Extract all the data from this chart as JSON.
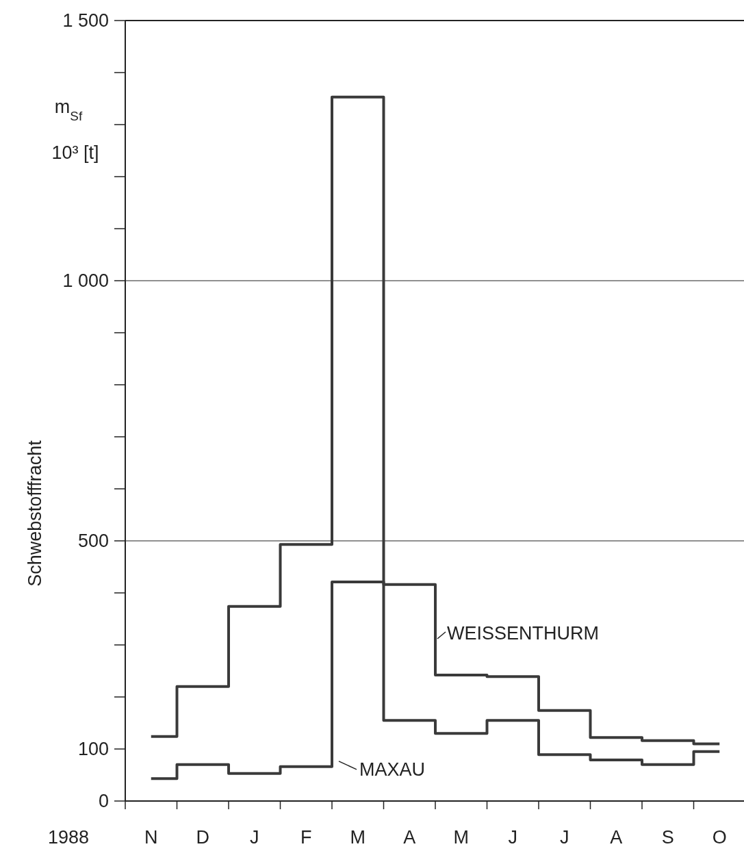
{
  "chart_data": {
    "type": "step",
    "ylabel": "Schwebstofffracht",
    "categories": [
      "N",
      "D",
      "J",
      "F",
      "M",
      "A",
      "M",
      "J",
      "J",
      "A",
      "S",
      "O"
    ],
    "series": [
      {
        "name": "WEISSENTHURM",
        "color": "#3a3a3a",
        "values": [
          124,
          220,
          374,
          493,
          1353,
          416,
          242,
          239,
          174,
          122,
          116,
          110
        ]
      },
      {
        "name": "MAXAU",
        "color": "#3a3a3a",
        "values": [
          43,
          70,
          53,
          66,
          421,
          155,
          130,
          155,
          89,
          79,
          70,
          95
        ]
      }
    ],
    "ylim": [
      0,
      1500
    ],
    "yticks": [
      0,
      100,
      {
        "value": 200,
        "label": null
      },
      {
        "value": 300,
        "label": null
      },
      {
        "value": 400,
        "label": null
      },
      500,
      {
        "value": 600,
        "label": null
      },
      {
        "value": 700,
        "label": null
      },
      {
        "value": 800,
        "label": null
      },
      {
        "value": 900,
        "label": null
      },
      {
        "value": 1000,
        "label": "1 000"
      },
      {
        "value": 1100,
        "label": null
      },
      {
        "value": 1200,
        "label": null
      },
      {
        "value": 1300,
        "label": null
      },
      {
        "value": 1400,
        "label": null
      },
      {
        "value": 1500,
        "label": "1 500"
      }
    ],
    "ref_lines": [
      {
        "axis": "y",
        "value": 500
      },
      {
        "axis": "y",
        "value": 1000
      }
    ],
    "annotations": [
      "1988",
      "m$_{Sf}$\n10³ [t]"
    ]
  }
}
